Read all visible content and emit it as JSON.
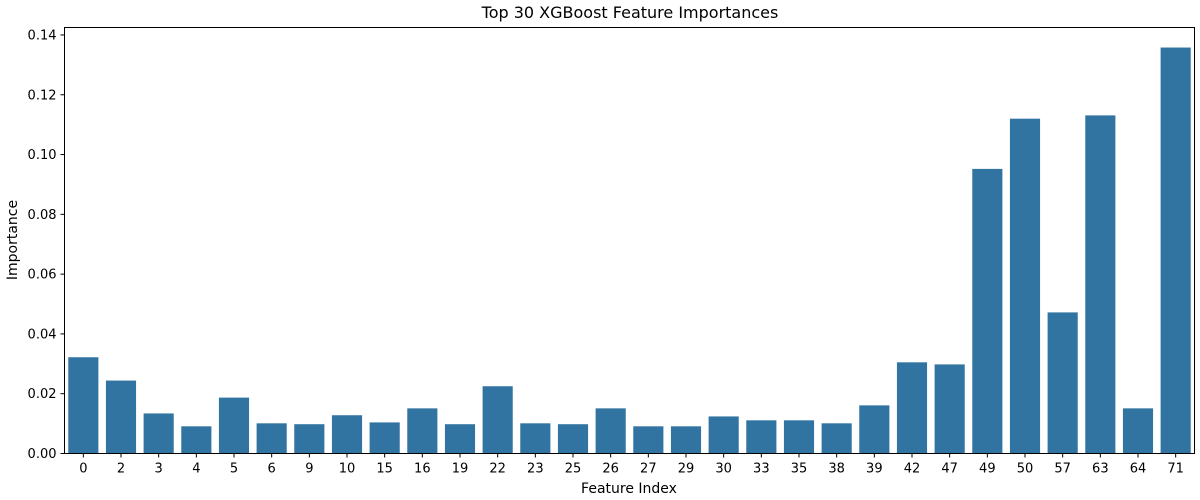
{
  "chart_data": {
    "type": "bar",
    "title": "Top 30 XGBoost Feature Importances",
    "xlabel": "Feature Index",
    "ylabel": "Importance",
    "categories": [
      "0",
      "2",
      "3",
      "4",
      "5",
      "6",
      "9",
      "10",
      "15",
      "16",
      "19",
      "22",
      "23",
      "25",
      "26",
      "27",
      "29",
      "30",
      "33",
      "35",
      "38",
      "39",
      "42",
      "47",
      "49",
      "50",
      "57",
      "63",
      "64",
      "71"
    ],
    "values": [
      0.0322,
      0.0244,
      0.0134,
      0.0091,
      0.0187,
      0.0101,
      0.0098,
      0.0128,
      0.0104,
      0.0151,
      0.0098,
      0.0225,
      0.0101,
      0.0098,
      0.0151,
      0.0091,
      0.0091,
      0.0124,
      0.0111,
      0.0111,
      0.0101,
      0.0161,
      0.0305,
      0.0298,
      0.0952,
      0.112,
      0.0472,
      0.1131,
      0.0151,
      0.1358
    ],
    "ylim": [
      0,
      0.1425
    ],
    "yticks": [
      "0.00",
      "0.02",
      "0.04",
      "0.06",
      "0.08",
      "0.10",
      "0.12",
      "0.14"
    ],
    "bar_color": "#3274a1",
    "grid": false,
    "legend": false
  }
}
